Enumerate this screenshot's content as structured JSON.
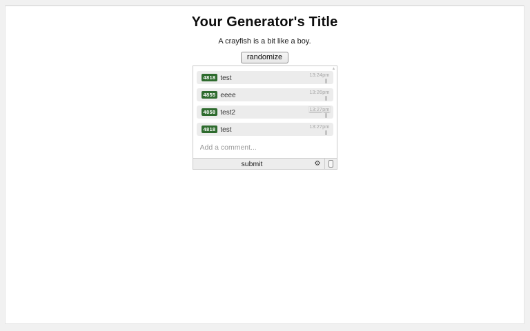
{
  "page": {
    "title": "Your Generator's Title",
    "subtitle": "A crayfish is a bit like a boy.",
    "randomize_label": "randomize"
  },
  "comment_widget": {
    "comments": [
      {
        "user_id": "4818",
        "text": "test",
        "time": "13:24pm"
      },
      {
        "user_id": "4855",
        "text": "eeee",
        "time": "13:26pm"
      },
      {
        "user_id": "4858",
        "text": "test2",
        "time": "13:27pm"
      },
      {
        "user_id": "4818",
        "text": "test",
        "time": "13:27pm"
      }
    ],
    "input_placeholder": "Add a comment...",
    "submit_label": "submit",
    "icons": {
      "gear": "⚙",
      "scroll_up": "▲",
      "flag": "▮",
      "mobile": "▯"
    }
  },
  "colors": {
    "badge_green": "#2e6b2e",
    "row_gray": "#ececec",
    "timestamp_gray": "#a6a6a6",
    "page_background": "#f1f1f1",
    "widget_border": "#c9c9c9"
  }
}
